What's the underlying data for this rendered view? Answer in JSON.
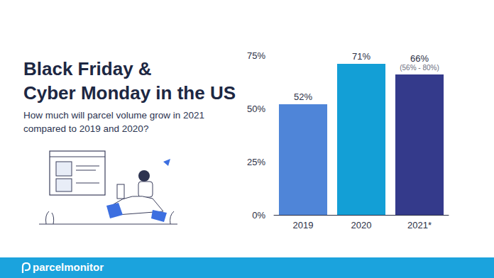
{
  "chart_data": {
    "type": "bar",
    "title": "Black Friday &\nCyber Monday in the US",
    "subtitle": "How much will parcel volume grow in 2021 compared to 2019 and 2020?",
    "categories": [
      "2019",
      "2020",
      "2021*"
    ],
    "values": [
      52,
      71,
      66
    ],
    "value_labels": [
      "52%",
      "71%",
      "66%"
    ],
    "colors": [
      "#4f85d8",
      "#139fd6",
      "#343a8b"
    ],
    "annotations": [
      {
        "category": "2021*",
        "text": "(56% - 80%)"
      }
    ],
    "ylim": [
      0,
      75
    ],
    "yticks": [
      {
        "value": 0,
        "label": "0%"
      },
      {
        "value": 25,
        "label": "25%"
      },
      {
        "value": 50,
        "label": "50%"
      },
      {
        "value": 75,
        "label": "75%"
      }
    ],
    "grid": false,
    "data_labels": true
  },
  "footer_text": "parcelmonitor"
}
